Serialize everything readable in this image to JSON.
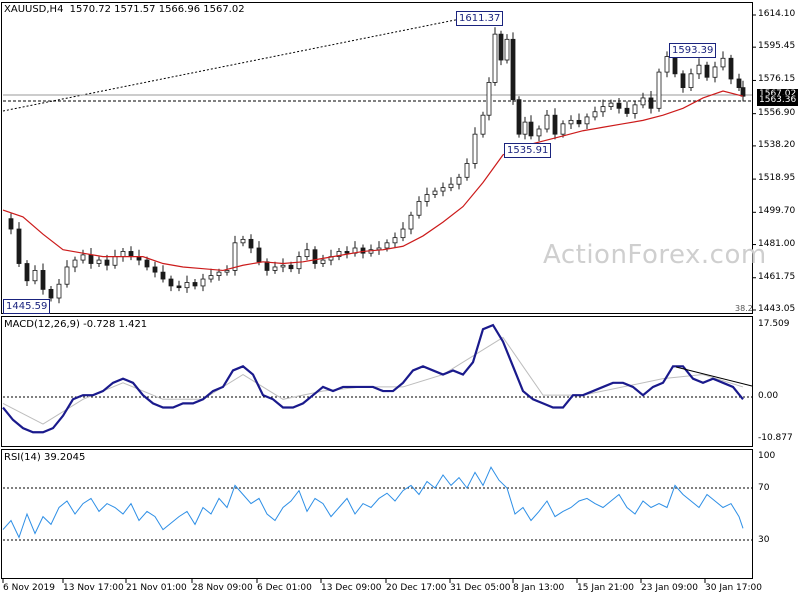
{
  "header": {
    "symbol": "XAUUSD,H4",
    "ohlc": "1570.72 1571.57 1566.96 1567.02"
  },
  "watermark": "ActionForex.com",
  "labels": {
    "high1": "1611.37",
    "high2": "1593.39",
    "low1": "1535.91",
    "low2": "1445.59",
    "fib": "38.2",
    "price_current": "1567.02",
    "price_line": "1563.36"
  },
  "price_axis": [
    "1614.10",
    "1595.45",
    "1576.15",
    "1556.90",
    "1538.20",
    "1518.95",
    "1499.70",
    "1481.00",
    "1461.75",
    "1443.05"
  ],
  "macd": {
    "title": "MACD(12,26,9) -0.728 1.421",
    "axis_top": "17.509",
    "axis_zero": "0.00",
    "axis_bottom": "-10.877"
  },
  "rsi": {
    "title": "RSI(14) 39.2045",
    "axis": [
      "100",
      "70",
      "30"
    ]
  },
  "time_axis": [
    "6 Nov 2019",
    "13 Nov 17:00",
    "21 Nov 01:00",
    "28 Nov 09:00",
    "6 Dec 01:00",
    "13 Dec 09:00",
    "20 Dec 17:00",
    "31 Dec 05:00",
    "8 Jan 13:00",
    "15 Jan 21:00",
    "23 Jan 09:00",
    "30 Jan 17:00"
  ],
  "colors": {
    "price": "#1a1a1a",
    "ma": "#cc1b1b",
    "macd": "#1a1a8c",
    "signal": "#bdbdbd",
    "rsi": "#2e8fe6",
    "label_border": "#1a237e"
  },
  "chart_data": [
    {
      "type": "candlestick",
      "title": "XAUUSD,H4",
      "ylim": [
        1443.05,
        1614.1
      ],
      "ma_series": {
        "x": [
          0,
          20,
          40,
          60,
          80,
          100,
          120,
          140,
          160,
          180,
          200,
          220,
          240,
          260,
          280,
          300,
          320,
          340,
          360,
          380,
          400,
          420,
          440,
          460,
          480,
          500,
          520,
          540,
          560,
          580,
          600,
          620,
          640,
          660,
          680,
          700,
          720,
          740
        ],
        "values": [
          1501,
          1497,
          1487,
          1478,
          1476,
          1474,
          1474,
          1474,
          1470,
          1468,
          1467,
          1466,
          1469,
          1471,
          1470,
          1471,
          1473,
          1475,
          1477,
          1478,
          1480,
          1486,
          1494,
          1503,
          1517,
          1533,
          1538,
          1541,
          1544,
          1547,
          1549,
          1551,
          1553,
          1556,
          1560,
          1566,
          1570,
          1567
        ]
      },
      "close_series": {
        "x": [
          0,
          8,
          16,
          24,
          32,
          40,
          48,
          56,
          64,
          72,
          80,
          88,
          96,
          104,
          112,
          120,
          128,
          136,
          144,
          152,
          160,
          168,
          176,
          184,
          192,
          200,
          208,
          216,
          224,
          232,
          240,
          248,
          256,
          264,
          272,
          280,
          288,
          296,
          304,
          312,
          320,
          328,
          336,
          344,
          352,
          360,
          368,
          376,
          384,
          392,
          400,
          408,
          416,
          424,
          432,
          440,
          448,
          456,
          464,
          472,
          480,
          486,
          492,
          498,
          504,
          510,
          516,
          522,
          528,
          536,
          544,
          552,
          560,
          568,
          576,
          584,
          592,
          600,
          608,
          616,
          624,
          632,
          640,
          648,
          656,
          664,
          672,
          680,
          688,
          696,
          704,
          712,
          720,
          728,
          736,
          740
        ],
        "values": [
          1496,
          1490,
          1470,
          1460,
          1466,
          1455,
          1450,
          1458,
          1468,
          1472,
          1475,
          1470,
          1472,
          1469,
          1474,
          1477,
          1474,
          1472,
          1468,
          1465,
          1461,
          1457,
          1456,
          1459,
          1457,
          1461,
          1463,
          1465,
          1466,
          1482,
          1484,
          1479,
          1471,
          1466,
          1468,
          1469,
          1467,
          1474,
          1478,
          1470,
          1472,
          1474,
          1477,
          1476,
          1479,
          1476,
          1478,
          1479,
          1482,
          1485,
          1490,
          1498,
          1506,
          1510,
          1512,
          1514,
          1516,
          1520,
          1528,
          1545,
          1556,
          1575,
          1603,
          1588,
          1600,
          1565,
          1545,
          1552,
          1544,
          1548,
          1556,
          1545,
          1551,
          1553,
          1551,
          1555,
          1558,
          1561,
          1563,
          1560,
          1557,
          1562,
          1566,
          1560,
          1581,
          1590,
          1580,
          1572,
          1580,
          1585,
          1578,
          1584,
          1589,
          1577,
          1572,
          1567
        ]
      }
    },
    {
      "type": "line",
      "title": "MACD(12,26,9) -0.728 1.421",
      "ylim": [
        -10.877,
        17.509
      ],
      "series": [
        {
          "name": "MACD",
          "x": [
            0,
            10,
            20,
            30,
            40,
            50,
            60,
            70,
            80,
            90,
            100,
            110,
            120,
            130,
            140,
            150,
            160,
            170,
            180,
            190,
            200,
            210,
            220,
            230,
            240,
            250,
            260,
            270,
            280,
            290,
            300,
            310,
            320,
            330,
            340,
            350,
            360,
            370,
            380,
            390,
            400,
            410,
            420,
            430,
            440,
            450,
            460,
            470,
            480,
            490,
            500,
            510,
            520,
            530,
            540,
            550,
            560,
            570,
            580,
            590,
            600,
            610,
            620,
            630,
            640,
            650,
            660,
            670,
            680,
            690,
            700,
            710,
            720,
            730,
            740
          ],
          "values": [
            -3,
            -6,
            -8,
            -9,
            -9,
            -8,
            -5,
            -1,
            0,
            0,
            1,
            3,
            4,
            3,
            0,
            -2,
            -3,
            -3,
            -2,
            -2,
            -1,
            1,
            2,
            6,
            7,
            5,
            0,
            -1,
            -3,
            -3,
            -2,
            0,
            2,
            1,
            2,
            2,
            2,
            2,
            1,
            1,
            3,
            6,
            7,
            6,
            5,
            6,
            5,
            8,
            16,
            17,
            13,
            7,
            1,
            -1,
            -2,
            -3,
            -3,
            0,
            0,
            1,
            2,
            3,
            3,
            2,
            0,
            2,
            3,
            7,
            7,
            4,
            3,
            4,
            3,
            2,
            -1
          ]
        },
        {
          "name": "Signal",
          "x": [
            0,
            40,
            80,
            120,
            160,
            200,
            240,
            280,
            320,
            360,
            400,
            440,
            480,
            500,
            520,
            540,
            580,
            620,
            660,
            700,
            740
          ],
          "values": [
            -2,
            -7,
            -1,
            3,
            -1,
            -1,
            5,
            -1,
            1,
            2,
            2,
            5,
            11,
            14,
            7,
            0,
            0,
            2,
            4,
            5,
            2
          ]
        }
      ],
      "annotation": "trendline over MACD highs"
    },
    {
      "type": "line",
      "title": "RSI(14) 39.2045",
      "ylim": [
        0,
        100
      ],
      "levels": [
        70,
        30
      ],
      "series": [
        {
          "name": "RSI",
          "x": [
            0,
            8,
            16,
            24,
            32,
            40,
            48,
            56,
            64,
            72,
            80,
            88,
            96,
            104,
            112,
            120,
            128,
            136,
            144,
            152,
            160,
            168,
            176,
            184,
            192,
            200,
            208,
            216,
            224,
            232,
            240,
            248,
            256,
            264,
            272,
            280,
            288,
            296,
            304,
            312,
            320,
            328,
            336,
            344,
            352,
            360,
            368,
            376,
            384,
            392,
            400,
            408,
            416,
            424,
            432,
            440,
            448,
            456,
            464,
            472,
            480,
            488,
            496,
            504,
            512,
            520,
            528,
            536,
            544,
            552,
            560,
            568,
            576,
            584,
            592,
            600,
            608,
            616,
            624,
            632,
            640,
            648,
            656,
            664,
            672,
            680,
            688,
            696,
            704,
            712,
            720,
            728,
            736,
            740
          ],
          "values": [
            38,
            45,
            32,
            50,
            35,
            48,
            42,
            55,
            60,
            50,
            58,
            62,
            52,
            58,
            55,
            50,
            58,
            45,
            52,
            48,
            38,
            43,
            48,
            52,
            42,
            55,
            50,
            62,
            55,
            72,
            65,
            58,
            62,
            50,
            45,
            55,
            60,
            68,
            52,
            62,
            58,
            48,
            55,
            62,
            50,
            58,
            55,
            62,
            66,
            60,
            68,
            72,
            65,
            75,
            70,
            80,
            72,
            78,
            70,
            82,
            72,
            86,
            76,
            70,
            50,
            55,
            45,
            52,
            60,
            48,
            52,
            55,
            60,
            62,
            58,
            55,
            60,
            65,
            55,
            50,
            60,
            55,
            58,
            55,
            72,
            65,
            60,
            55,
            65,
            60,
            55,
            58,
            48,
            39
          ]
        }
      ]
    }
  ]
}
